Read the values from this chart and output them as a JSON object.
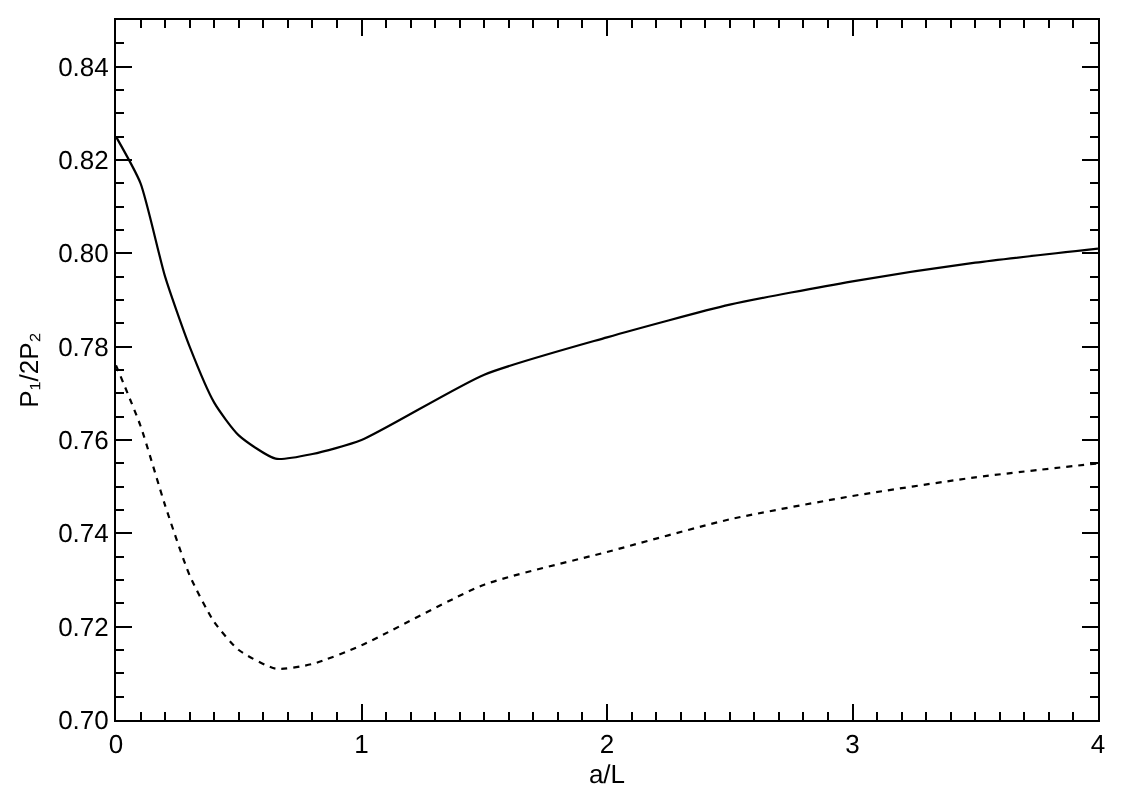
{
  "chart_data": {
    "type": "line",
    "xlabel": "a/L",
    "ylabel": "P₁/2P₂",
    "xlim": [
      0,
      4
    ],
    "xticks": [
      0,
      1,
      2,
      3,
      4
    ],
    "ylim": [
      0.7,
      0.85
    ],
    "yticks": [
      {
        "value": 0.7,
        "label": "0.70"
      },
      {
        "value": 0.72,
        "label": "0.72"
      },
      {
        "value": 0.74,
        "label": "0.74"
      },
      {
        "value": 0.76,
        "label": "0.76"
      },
      {
        "value": 0.78,
        "label": "0.78"
      },
      {
        "value": 0.8,
        "label": "0.80"
      },
      {
        "value": 0.82,
        "label": "0.82"
      },
      {
        "value": 0.84,
        "label": "0.84"
      }
    ],
    "marker": "none",
    "x": [
      0,
      0.1,
      0.2,
      0.3,
      0.4,
      0.5,
      0.65,
      0.8,
      1.0,
      1.5,
      2.0,
      2.5,
      3.0,
      3.5,
      4.0
    ],
    "series": [
      {
        "color": "#000000",
        "line_style": "solid",
        "values": [
          0.825,
          0.815,
          0.795,
          0.78,
          0.768,
          0.761,
          0.756,
          0.757,
          0.76,
          0.774,
          0.782,
          0.789,
          0.794,
          0.798,
          0.801
        ]
      },
      {
        "color": "#000000",
        "line_style": "dotted",
        "values": [
          0.776,
          0.763,
          0.746,
          0.731,
          0.721,
          0.715,
          0.711,
          0.712,
          0.716,
          0.729,
          0.736,
          0.743,
          0.748,
          0.752,
          0.755
        ]
      }
    ]
  }
}
